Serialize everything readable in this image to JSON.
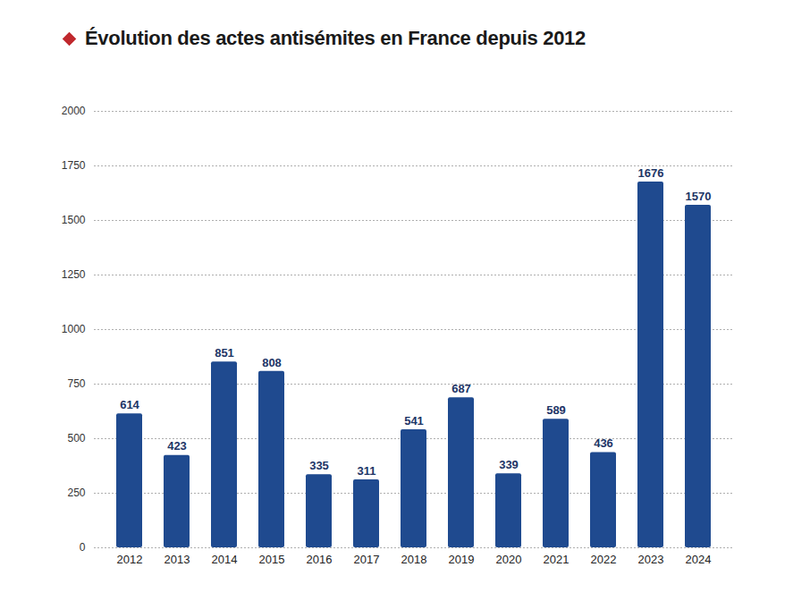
{
  "chart_data": {
    "type": "bar",
    "title": "Évolution des actes antisémites en France depuis 2012",
    "categories": [
      "2012",
      "2013",
      "2014",
      "2015",
      "2016",
      "2017",
      "2018",
      "2019",
      "2020",
      "2021",
      "2022",
      "2023",
      "2024"
    ],
    "values": [
      614,
      423,
      851,
      808,
      335,
      311,
      541,
      687,
      339,
      589,
      436,
      1676,
      1570
    ],
    "color": "#1f4a8f",
    "ylim": [
      0,
      2000
    ],
    "yticks": [
      0,
      250,
      500,
      750,
      1000,
      1250,
      1500,
      1750,
      2000
    ],
    "grid": true,
    "data_labels": true
  }
}
